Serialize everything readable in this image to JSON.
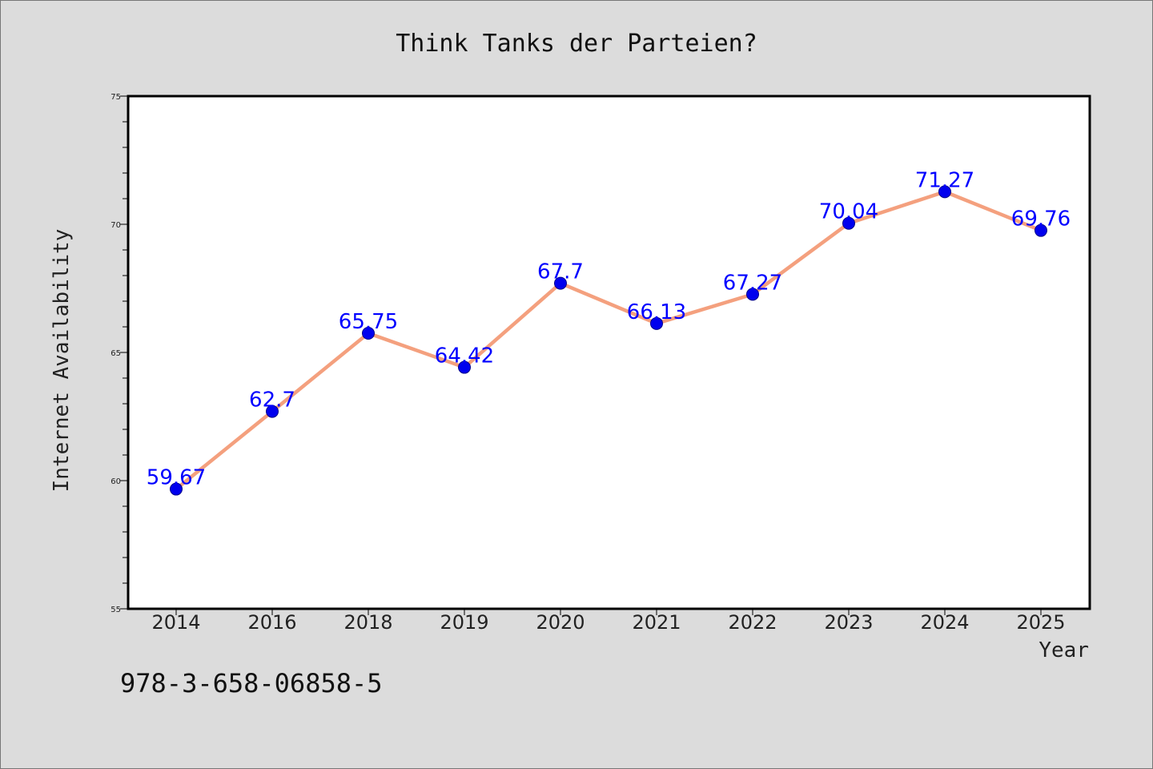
{
  "chart_data": {
    "type": "line",
    "title": "Think Tanks der Parteien?",
    "xlabel": "Year",
    "ylabel": "Internet Availability",
    "categories": [
      "2014",
      "2016",
      "2018",
      "2019",
      "2020",
      "2021",
      "2022",
      "2023",
      "2024",
      "2025"
    ],
    "series": [
      {
        "values": [
          59.67,
          62.7,
          65.75,
          64.42,
          67.7,
          66.13,
          67.27,
          70.04,
          71.27,
          69.76
        ],
        "labels": [
          "59.67",
          "62.7",
          "65.75",
          "64.42",
          "67.7",
          "66.13",
          "67.27",
          "70.04",
          "71.27",
          "69.76"
        ],
        "line_color": "#f4a07e",
        "marker_color": "#0000ee"
      }
    ],
    "ylim": [
      55,
      75
    ],
    "yticks": [
      "55",
      "60",
      "65",
      "70",
      "75"
    ],
    "grid": false,
    "legend": "none"
  },
  "annotation": {
    "isbn": "978-3-658-06858-5"
  },
  "colors": {
    "background": "#dcdcdc",
    "plot_background": "#ffffff",
    "data_label": "#0000ff"
  }
}
